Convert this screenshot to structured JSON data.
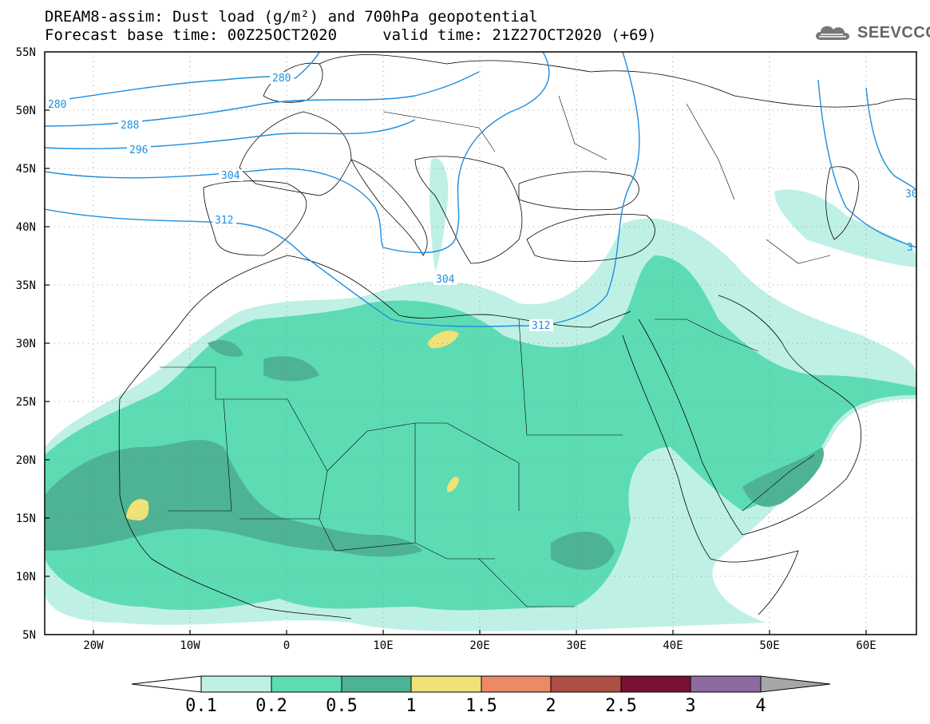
{
  "title": {
    "line1": "DREAM8-assim: Dust load (g/m²) and 700hPa geopotential",
    "line2": "Forecast base time: 00Z25OCT2020     valid time: 21Z27OCT2020 (+69)"
  },
  "logo": {
    "text": "SEEVCCC",
    "icon": "cloud-logo-icon"
  },
  "map": {
    "lon_range": [
      -25,
      65
    ],
    "lat_range": [
      5,
      55
    ],
    "lon_ticks": [
      "20W",
      "10W",
      "0",
      "10E",
      "20E",
      "30E",
      "40E",
      "50E",
      "60E"
    ],
    "lat_ticks": [
      "55N",
      "50N",
      "45N",
      "40N",
      "35N",
      "30N",
      "25N",
      "20N",
      "15N",
      "10N",
      "5N"
    ],
    "contour_color": "#1e8ee0",
    "contour_labels": [
      "280",
      "280",
      "288",
      "296",
      "304",
      "312",
      "304",
      "312",
      "30",
      "3"
    ]
  },
  "colorbar": {
    "tick_labels": [
      "0.1",
      "0.2",
      "0.5",
      "1",
      "1.5",
      "2",
      "2.5",
      "3",
      "4"
    ],
    "colors": [
      "#bff0e6",
      "#5ddcb4",
      "#4eb394",
      "#f0e276",
      "#eb8a66",
      "#ac4f44",
      "#7a1034",
      "#8e6aa0",
      "#a6a6a6"
    ]
  }
}
